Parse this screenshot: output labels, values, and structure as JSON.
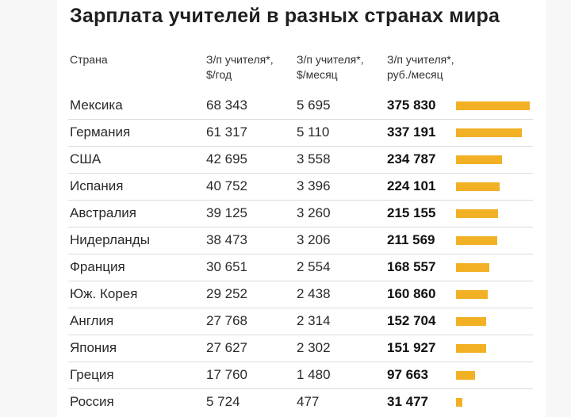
{
  "chart_data": {
    "type": "table",
    "title": "Зарплата учителей в разных странах мира",
    "columns": [
      {
        "line1": "Страна",
        "line2": ""
      },
      {
        "line1": "З/п учителя*,",
        "line2": "$/год"
      },
      {
        "line1": "З/п учителя*,",
        "line2": "$/месяц"
      },
      {
        "line1": "З/п учителя*,",
        "line2": "руб./месяц"
      }
    ],
    "bar_max": 375830,
    "bar_color": "#f2b125",
    "rows": [
      {
        "country": "Мексика",
        "usd_year": "68 343",
        "usd_month": "5 695",
        "rub_month": "375 830",
        "value": 375830
      },
      {
        "country": "Германия",
        "usd_year": "61 317",
        "usd_month": "5 110",
        "rub_month": "337 191",
        "value": 337191
      },
      {
        "country": "США",
        "usd_year": "42 695",
        "usd_month": "3 558",
        "rub_month": "234 787",
        "value": 234787
      },
      {
        "country": "Испания",
        "usd_year": "40 752",
        "usd_month": "3 396",
        "rub_month": "224 101",
        "value": 224101
      },
      {
        "country": "Австралия",
        "usd_year": "39 125",
        "usd_month": "3 260",
        "rub_month": "215 155",
        "value": 215155
      },
      {
        "country": "Нидерланды",
        "usd_year": "38 473",
        "usd_month": "3 206",
        "rub_month": "211 569",
        "value": 211569
      },
      {
        "country": "Франция",
        "usd_year": "30 651",
        "usd_month": "2 554",
        "rub_month": "168 557",
        "value": 168557
      },
      {
        "country": "Юж. Корея",
        "usd_year": "29 252",
        "usd_month": "2 438",
        "rub_month": "160 860",
        "value": 160860
      },
      {
        "country": "Англия",
        "usd_year": "27 768",
        "usd_month": "2 314",
        "rub_month": "152 704",
        "value": 152704
      },
      {
        "country": "Япония",
        "usd_year": "27 627",
        "usd_month": "2 302",
        "rub_month": "151 927",
        "value": 151927
      },
      {
        "country": "Греция",
        "usd_year": "17 760",
        "usd_month": "1 480",
        "rub_month": "97 663",
        "value": 97663
      },
      {
        "country": "Россия",
        "usd_year": "5 724",
        "usd_month": "477",
        "rub_month": "31 477",
        "value": 31477
      }
    ]
  }
}
